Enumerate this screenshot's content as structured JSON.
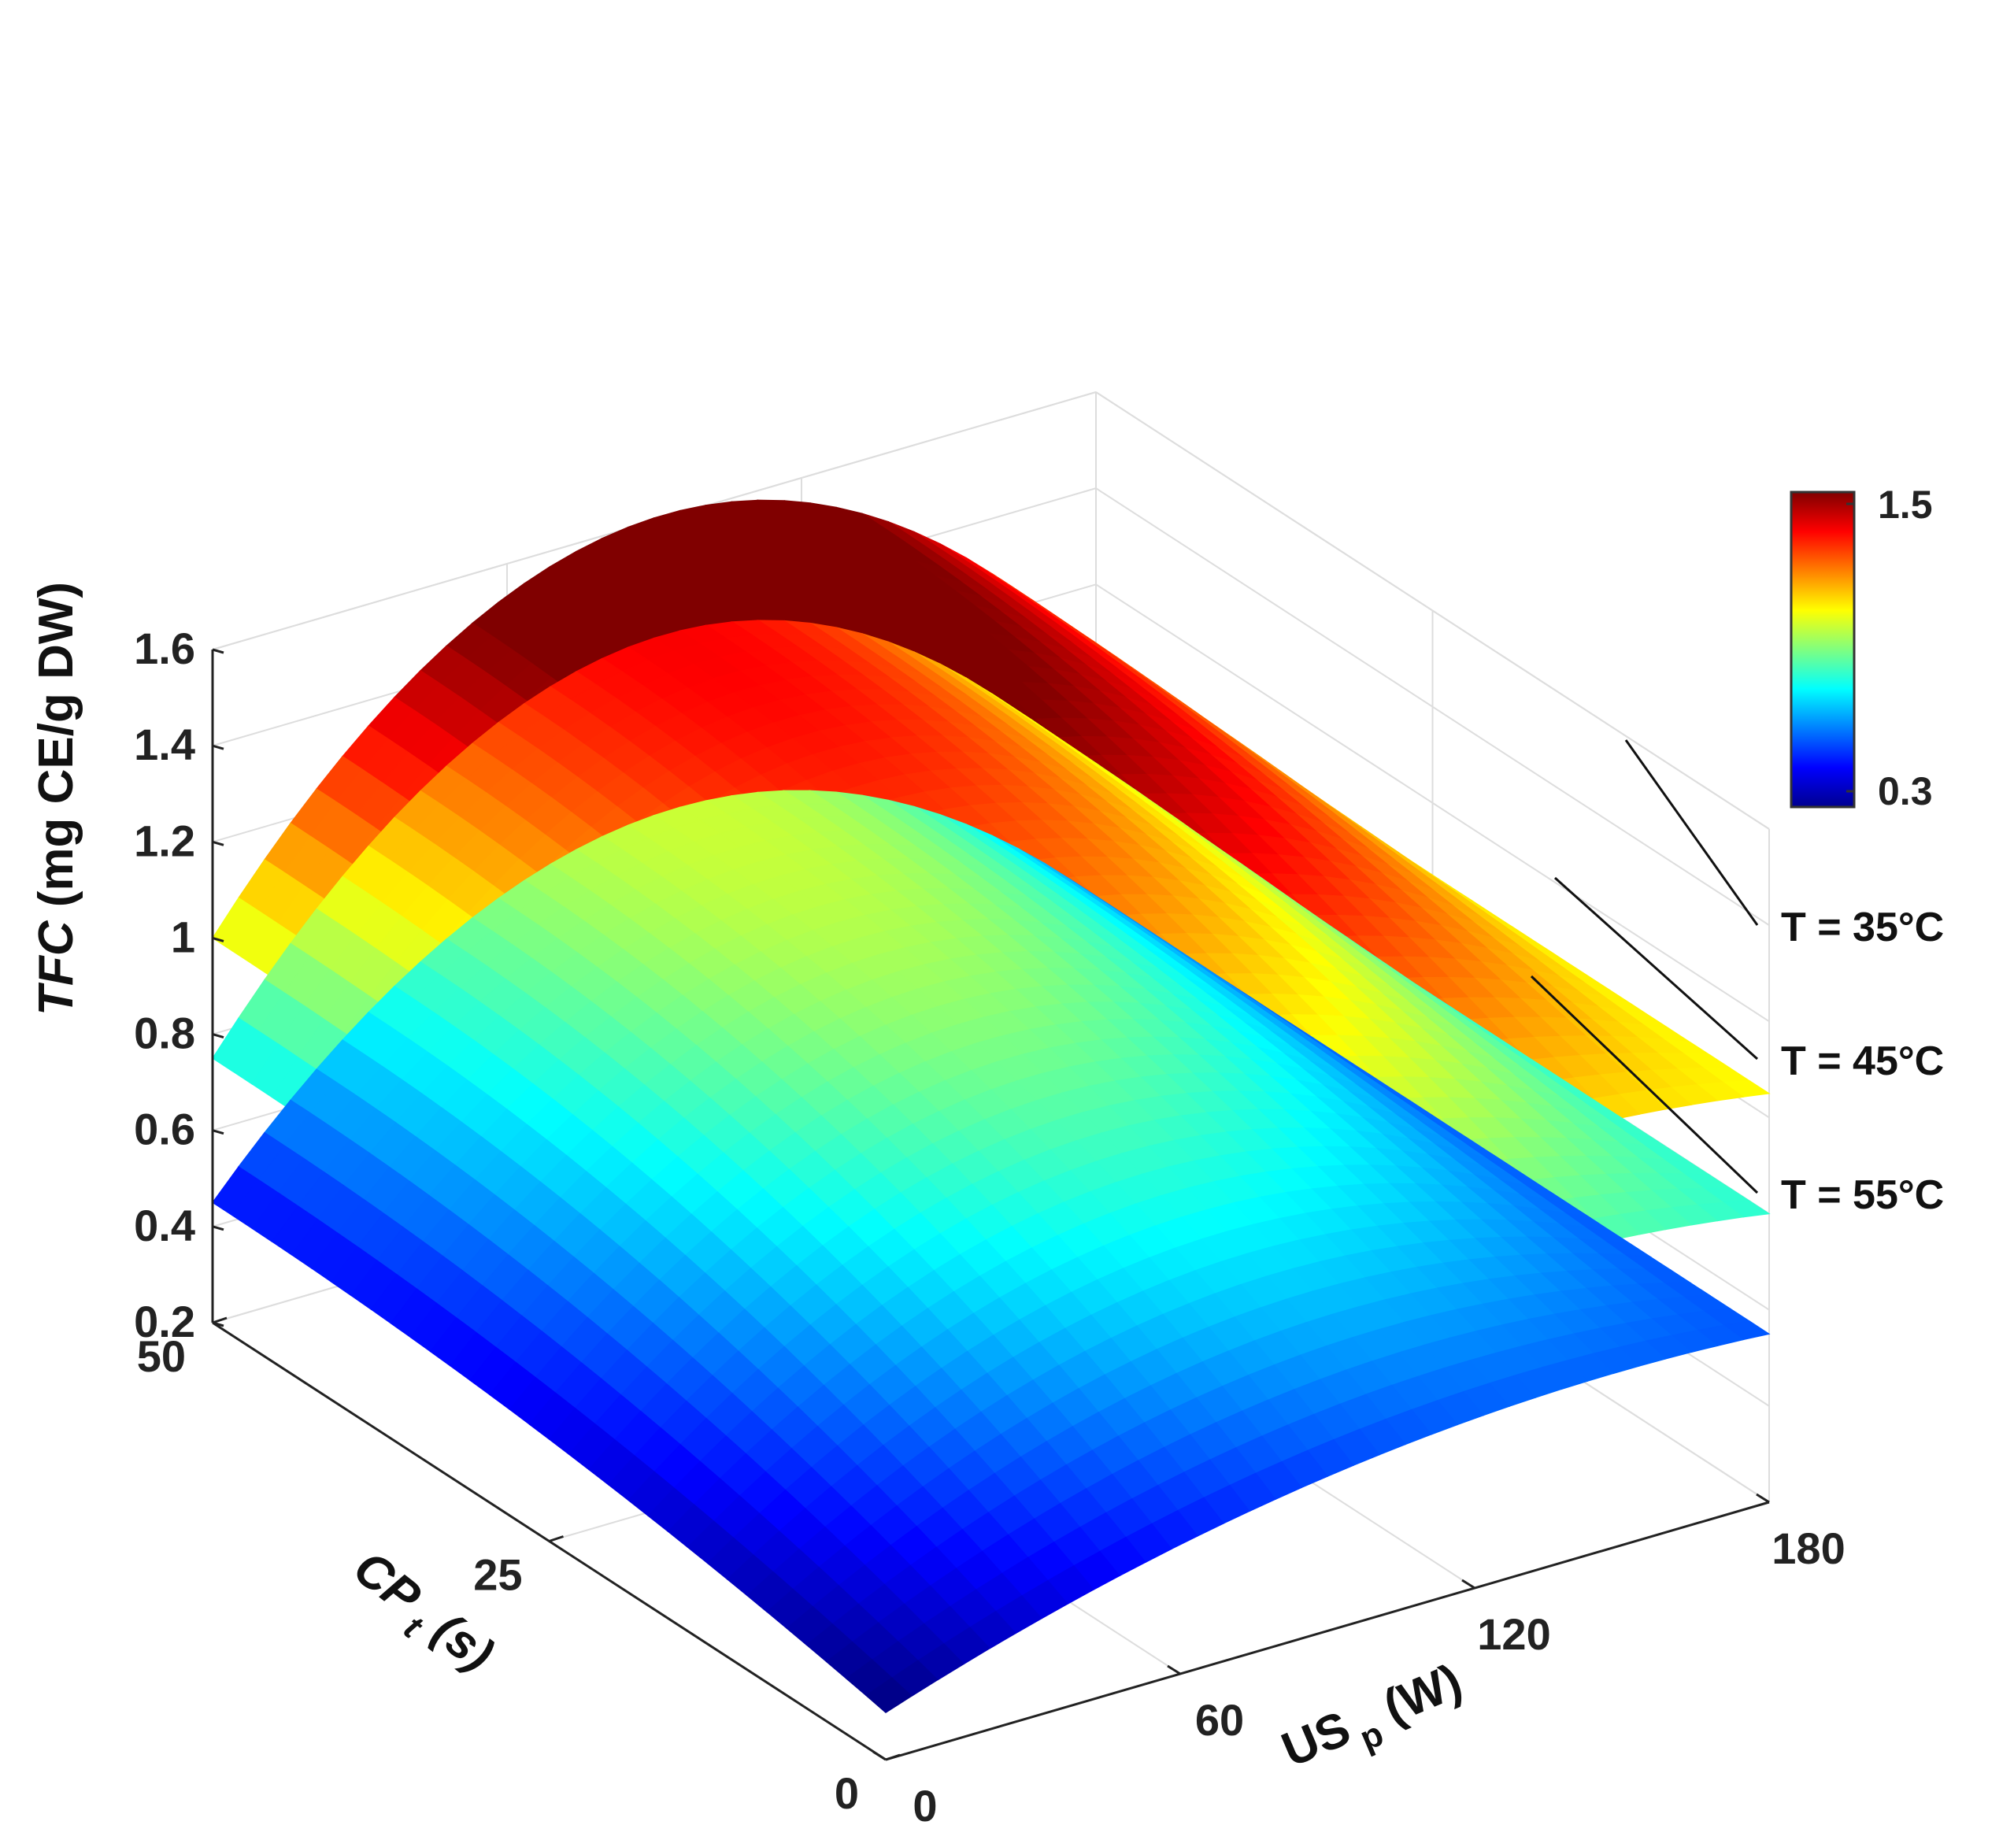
{
  "chart_data": {
    "type": "surface",
    "zlabel_var": "TFC",
    "zlabel_unit": " (mg CE/g DW)",
    "xlabel_var": "US",
    "xlabel_sub": "p",
    "xlabel_unit": " (W)",
    "ylabel_var": "CP",
    "ylabel_sub": "t",
    "ylabel_unit": " (s)",
    "x_ticks": [
      "0",
      "60",
      "120",
      "180"
    ],
    "y_ticks": [
      "0",
      "25",
      "50"
    ],
    "z_ticks": [
      "0.2",
      "0.4",
      "0.6",
      "0.8",
      "1",
      "1.2",
      "1.4",
      "1.6"
    ],
    "xlim": [
      0,
      180
    ],
    "ylim": [
      0,
      50
    ],
    "zlim": [
      0.2,
      1.6
    ],
    "colorbar": {
      "min": 0.3,
      "max": 1.5,
      "min_label": "0.3",
      "max_label": "1.5",
      "colormap": "jet"
    },
    "grid": true,
    "series": [
      {
        "name": "T = 35°C",
        "corners": {
          "x0_y0": 0.87,
          "x0_y50": 1.0,
          "x180_y0": 1.05,
          "x180_y50": 1.05
        },
        "peak": {
          "x": 120,
          "y": 50,
          "z": 1.55
        }
      },
      {
        "name": "T = 45°C",
        "corners": {
          "x0_y0": 0.62,
          "x0_y50": 0.75,
          "x180_y0": 0.8,
          "x180_y50": 0.8
        },
        "peak": {
          "x": 120,
          "y": 50,
          "z": 1.3
        }
      },
      {
        "name": "T = 55°C",
        "corners": {
          "x0_y0": 0.26,
          "x0_y50": 0.45,
          "x180_y0": 0.55,
          "x180_y50": 0.55
        },
        "peak": {
          "x": 120,
          "y": 50,
          "z": 0.95
        }
      }
    ]
  }
}
